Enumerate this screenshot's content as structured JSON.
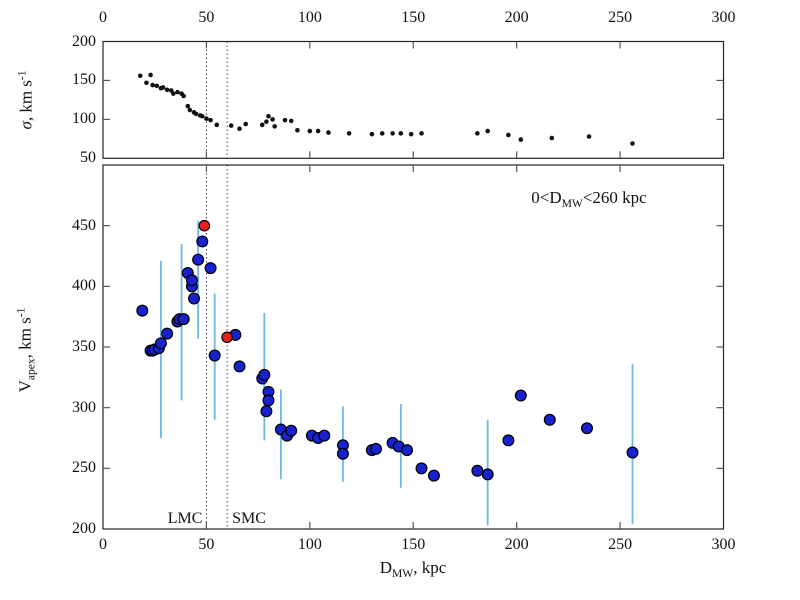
{
  "figure": {
    "annotation": {
      "prefix": "0<D",
      "sub": "MW",
      "suffix": "<260 kpc"
    },
    "x_axis": {
      "title_main": "D",
      "title_sub": "MW",
      "title_suffix": ", kpc",
      "ticks": [
        0,
        50,
        100,
        150,
        200,
        250,
        300
      ],
      "range": [
        0,
        300
      ]
    },
    "top_y_axis": {
      "title_sigma": "σ",
      "title_rest": ", km s",
      "title_sup": "-1",
      "ticks": [
        50,
        100,
        150,
        200
      ],
      "range": [
        50,
        200
      ]
    },
    "bottom_y_axis": {
      "title_v": "V",
      "title_sub": "apex",
      "title_rest": ", km s",
      "title_sup": "-1",
      "ticks": [
        200,
        250,
        300,
        350,
        400,
        450
      ],
      "range": [
        200,
        500
      ]
    },
    "markers": [
      {
        "label": "LMC",
        "x": 50
      },
      {
        "label": "SMC",
        "x": 60
      }
    ]
  },
  "colors": {
    "point_black": "#111111",
    "point_blue": "#1722cf",
    "point_red": "#e81e1e",
    "error_bar": "#6fb7e3",
    "axis": "#222222",
    "dotted_line": "#444444"
  },
  "chart_data": [
    {
      "type": "scatter",
      "panel": "top",
      "ylabel": "sigma, km s^-1",
      "xlabel": "D_MW, kpc",
      "xlim": [
        0,
        300
      ],
      "ylim": [
        50,
        200
      ],
      "grid": false,
      "vlines": [
        50,
        60
      ],
      "series": [
        {
          "name": "sigma",
          "marker": "dot-black",
          "points": [
            [
              18,
              156
            ],
            [
              23,
              157
            ],
            [
              21,
              147
            ],
            [
              24,
              144
            ],
            [
              26,
              143
            ],
            [
              28,
              140
            ],
            [
              29,
              141
            ],
            [
              31,
              138
            ],
            [
              33,
              137
            ],
            [
              34,
              133
            ],
            [
              36,
              135
            ],
            [
              38,
              133
            ],
            [
              39,
              130
            ],
            [
              41,
              117
            ],
            [
              42,
              112
            ],
            [
              44,
              109
            ],
            [
              45,
              107
            ],
            [
              47,
              105
            ],
            [
              48,
              104
            ],
            [
              50,
              101
            ],
            [
              52,
              99
            ],
            [
              55,
              93
            ],
            [
              62,
              92
            ],
            [
              66,
              88
            ],
            [
              69,
              94
            ],
            [
              77,
              93
            ],
            [
              79,
              97
            ],
            [
              80,
              104
            ],
            [
              82,
              100
            ],
            [
              83,
              91
            ],
            [
              88,
              99
            ],
            [
              91,
              98
            ],
            [
              94,
              86
            ],
            [
              100,
              85
            ],
            [
              104,
              85
            ],
            [
              109,
              83
            ],
            [
              119,
              82
            ],
            [
              130,
              81
            ],
            [
              135,
              82
            ],
            [
              140,
              82
            ],
            [
              144,
              82
            ],
            [
              149,
              81
            ],
            [
              154,
              82
            ],
            [
              181,
              82
            ],
            [
              186,
              85
            ],
            [
              196,
              80
            ],
            [
              202,
              74
            ],
            [
              217,
              76
            ],
            [
              235,
              78
            ],
            [
              256,
              69
            ]
          ]
        }
      ]
    },
    {
      "type": "scatter",
      "panel": "bottom",
      "ylabel": "V_apex, km s^-1",
      "xlabel": "D_MW, kpc",
      "xlim": [
        0,
        300
      ],
      "ylim": [
        200,
        500
      ],
      "grid": false,
      "vlines": [
        50,
        60
      ],
      "vline_labels": [
        "LMC",
        "SMC"
      ],
      "annotation": "0<D_MW<260 kpc",
      "series": [
        {
          "name": "v_apex",
          "marker": "circle-blue",
          "points": [
            [
              19,
              380
            ],
            [
              23,
              347
            ],
            [
              24,
              347
            ],
            [
              25,
              348
            ],
            [
              27,
              349
            ],
            [
              28,
              353
            ],
            [
              31,
              361
            ],
            [
              36,
              371
            ],
            [
              37,
              373
            ],
            [
              39,
              373
            ],
            [
              41,
              411
            ],
            [
              43,
              400
            ],
            [
              43,
              405
            ],
            [
              44,
              390
            ],
            [
              46,
              422
            ],
            [
              48,
              437
            ],
            [
              52,
              415
            ],
            [
              54,
              343
            ],
            [
              64,
              360
            ],
            [
              66,
              334
            ],
            [
              77,
              324
            ],
            [
              78,
              327
            ],
            [
              79,
              297
            ],
            [
              80,
              313
            ],
            [
              80,
              306
            ],
            [
              86,
              282
            ],
            [
              89,
              277
            ],
            [
              91,
              281
            ],
            [
              101,
              277
            ],
            [
              104,
              275
            ],
            [
              107,
              277
            ],
            [
              116,
              269
            ],
            [
              116,
              262
            ],
            [
              130,
              265
            ],
            [
              132,
              266
            ],
            [
              140,
              271
            ],
            [
              143,
              268
            ],
            [
              147,
              265
            ],
            [
              154,
              250
            ],
            [
              160,
              244
            ],
            [
              181,
              248
            ],
            [
              186,
              245
            ],
            [
              196,
              273
            ],
            [
              202,
              310
            ],
            [
              216,
              290
            ],
            [
              234,
              283
            ],
            [
              256,
              263
            ]
          ]
        },
        {
          "name": "v_apex_highlighted",
          "marker": "circle-red",
          "points": [
            [
              49,
              450
            ],
            [
              60,
              358
            ]
          ]
        },
        {
          "name": "error_bars",
          "marker": "vline-lightblue",
          "bars": [
            [
              28,
              275,
              421
            ],
            [
              38,
              306,
              435
            ],
            [
              46,
              357,
              454
            ],
            [
              54,
              290,
              394
            ],
            [
              78,
              273,
              378
            ],
            [
              86,
              241,
              315
            ],
            [
              116,
              239,
              301
            ],
            [
              144,
              234,
              303
            ],
            [
              186,
              203,
              290
            ],
            [
              256,
              204,
              336
            ]
          ]
        }
      ]
    }
  ]
}
